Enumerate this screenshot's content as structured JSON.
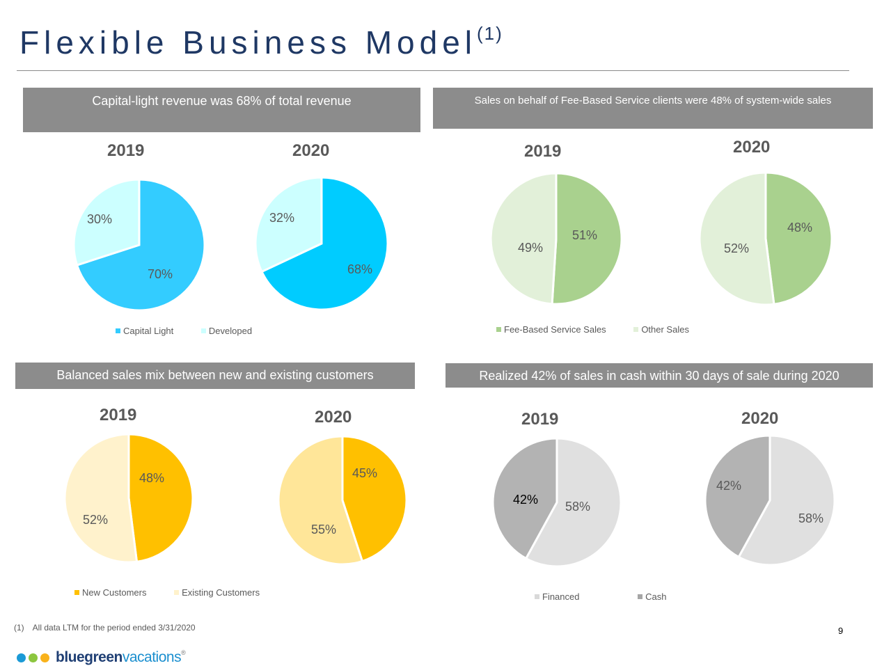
{
  "page": {
    "title": "Flexible Business Model",
    "title_superscript": "(1)",
    "footnote_marker": "(1)",
    "footnote_text": "All data LTM for the period ended 3/31/2020",
    "page_number": "9",
    "logo": {
      "strong": "bluegreen",
      "light": "vacations",
      "reg": "®",
      "dot_colors": [
        "#1b9ad6",
        "#8cc63f",
        "#f9b21b"
      ]
    }
  },
  "panels": [
    {
      "banner": "Capital-light revenue was 68% of total revenue",
      "years": [
        "2019",
        "2020"
      ],
      "legend": [
        {
          "label": "Capital Light",
          "color": "#33ccff"
        },
        {
          "label": "Developed",
          "color": "#ccffff"
        }
      ]
    },
    {
      "banner": "Sales on behalf of Fee-Based Service clients were 48% of system-wide sales",
      "years": [
        "2019",
        "2020"
      ],
      "legend": [
        {
          "label": "Fee-Based Service Sales",
          "color": "#a9d18e"
        },
        {
          "label": "Other Sales",
          "color": "#e2f0d9"
        }
      ]
    },
    {
      "banner": "Balanced sales mix between new and existing customers",
      "years": [
        "2019",
        "2020"
      ],
      "legend": [
        {
          "label": "New Customers",
          "color": "#ffc000"
        },
        {
          "label": "Existing Customers",
          "color": "#fff2cc"
        }
      ]
    },
    {
      "banner": "Realized 42% of sales in cash within 30 days of sale during 2020",
      "years": [
        "2019",
        "2020"
      ],
      "legend": [
        {
          "label": "Financed",
          "color": "#d9d9d9"
        },
        {
          "label": "Cash",
          "color": "#a6a6a6"
        }
      ]
    }
  ],
  "chart_data": [
    {
      "type": "pie",
      "title": "2019",
      "panel": "Capital-light revenue was 68% of total revenue",
      "slices": [
        {
          "label": "Capital Light",
          "value": 70,
          "text": "70%",
          "color": "#33ccff",
          "text_color": "#595959"
        },
        {
          "label": "Developed",
          "value": 30,
          "text": "30%",
          "color": "#ccffff",
          "text_color": "#595959"
        }
      ]
    },
    {
      "type": "pie",
      "title": "2020",
      "panel": "Capital-light revenue was 68% of total revenue",
      "slices": [
        {
          "label": "Capital Light",
          "value": 68,
          "text": "68%",
          "color": "#00ccff",
          "text_color": "#595959"
        },
        {
          "label": "Developed",
          "value": 32,
          "text": "32%",
          "color": "#ccffff",
          "text_color": "#595959"
        }
      ]
    },
    {
      "type": "pie",
      "title": "2019",
      "panel": "Sales on behalf of Fee-Based Service clients were 48% of system-wide sales",
      "slices": [
        {
          "label": "Fee-Based Service Sales",
          "value": 51,
          "text": "51%",
          "color": "#a9d18e",
          "text_color": "#595959"
        },
        {
          "label": "Other Sales",
          "value": 49,
          "text": "49%",
          "color": "#e2f0d9",
          "text_color": "#595959"
        }
      ]
    },
    {
      "type": "pie",
      "title": "2020",
      "panel": "Sales on behalf of Fee-Based Service clients were 48% of system-wide sales",
      "slices": [
        {
          "label": "Fee-Based Service Sales",
          "value": 48,
          "text": "48%",
          "color": "#a9d18e",
          "text_color": "#595959"
        },
        {
          "label": "Other Sales",
          "value": 52,
          "text": "52%",
          "color": "#e2f0d9",
          "text_color": "#595959"
        }
      ]
    },
    {
      "type": "pie",
      "title": "2019",
      "panel": "Balanced sales mix between new and existing customers",
      "slices": [
        {
          "label": "New Customers",
          "value": 48,
          "text": "48%",
          "color": "#ffc000",
          "text_color": "#595959"
        },
        {
          "label": "Existing Customers",
          "value": 52,
          "text": "52%",
          "color": "#fff2cc",
          "text_color": "#595959"
        }
      ]
    },
    {
      "type": "pie",
      "title": "2020",
      "panel": "Balanced sales mix between new and existing customers",
      "slices": [
        {
          "label": "New Customers",
          "value": 45,
          "text": "45%",
          "color": "#ffc000",
          "text_color": "#595959"
        },
        {
          "label": "Existing Customers",
          "value": 55,
          "text": "55%",
          "color": "#ffe699",
          "text_color": "#595959"
        }
      ]
    },
    {
      "type": "pie",
      "title": "2019",
      "panel": "Realized 42% of sales in cash within 30 days of sale during 2020",
      "slices": [
        {
          "label": "Financed",
          "value": 58,
          "text": "58%",
          "color": "#e0e0e0",
          "text_color": "#595959"
        },
        {
          "label": "Cash",
          "value": 42,
          "text": "42%",
          "color": "#b3b3b3",
          "text_color": "#000000"
        }
      ]
    },
    {
      "type": "pie",
      "title": "2020",
      "panel": "Realized 42% of sales in cash within 30 days of sale during 2020",
      "slices": [
        {
          "label": "Financed",
          "value": 58,
          "text": "58%",
          "color": "#e0e0e0",
          "text_color": "#595959"
        },
        {
          "label": "Cash",
          "value": 42,
          "text": "42%",
          "color": "#b3b3b3",
          "text_color": "#595959"
        }
      ]
    }
  ]
}
